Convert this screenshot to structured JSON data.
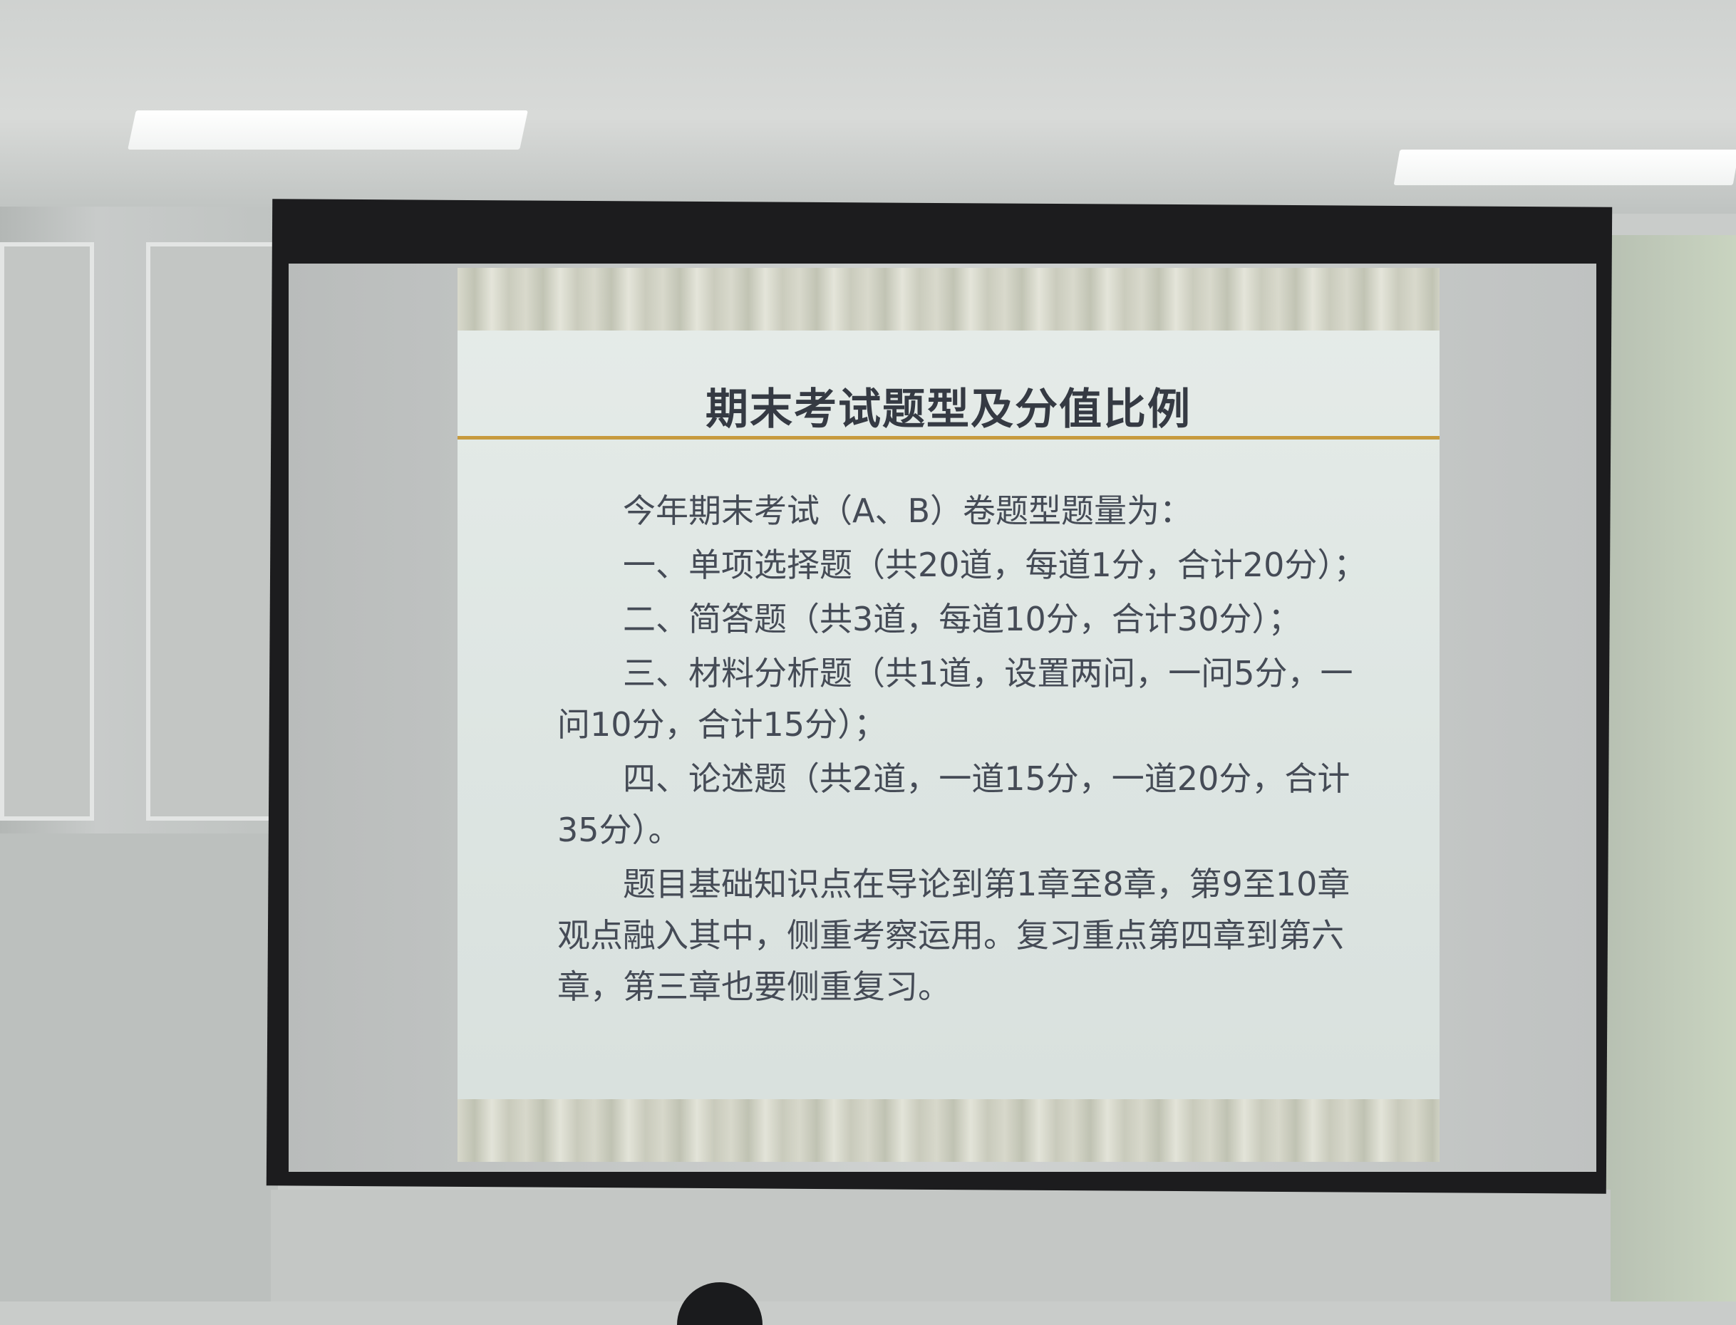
{
  "slide": {
    "title": "期末考试题型及分值比例",
    "paragraphs": [
      "今年期末考试（A、B）卷题型题量为：",
      "一、单项选择题（共20道，每道1分，合计20分）；",
      "二、简答题（共3道，每道10分，合计30分）；",
      "三、材料分析题（共1道，设置两问，一问5分，一问10分，合计15分）；",
      "四、论述题（共2道，一道15分，一道20分，合计35分）。",
      "题目基础知识点在导论到第1章至8章，第9至10章观点融入其中，侧重考察运用。复习重点第四章到第六章，第三章也要侧重复习。"
    ]
  },
  "colors": {
    "title_rule": "#c79a3e",
    "slide_background": "#e2e9e6",
    "text": "#454b56"
  }
}
